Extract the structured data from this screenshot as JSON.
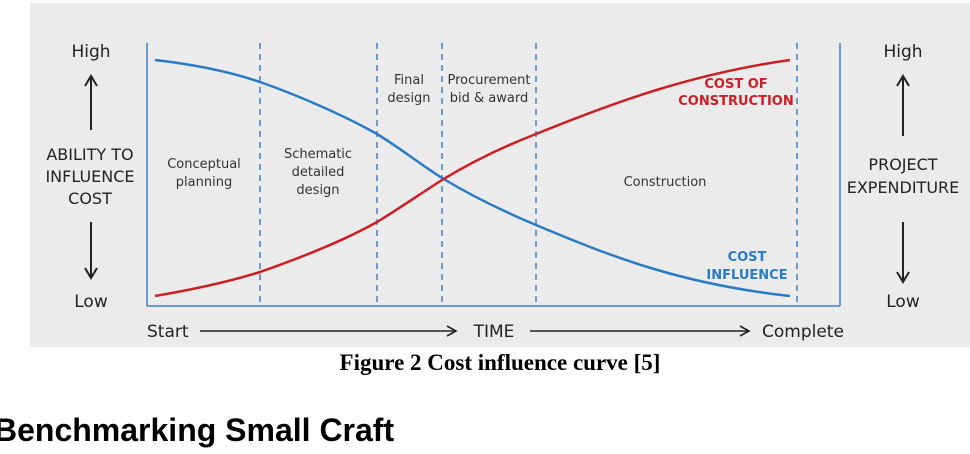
{
  "figure": {
    "left_axis": {
      "top": "High",
      "label_lines": [
        "ABILITY TO",
        "INFLUENCE",
        "COST"
      ],
      "bottom": "Low"
    },
    "right_axis": {
      "top": "High",
      "label_lines": [
        "PROJECT",
        "EXPENDITURE"
      ],
      "bottom": "Low"
    },
    "time_axis": {
      "start": "Start",
      "middle": "TIME",
      "end": "Complete"
    },
    "phases": [
      {
        "name": "conceptual-planning",
        "lines": [
          "Conceptual",
          "planning"
        ]
      },
      {
        "name": "schematic-detailed-design",
        "lines": [
          "Schematic",
          "detailed",
          "design"
        ]
      },
      {
        "name": "final-design",
        "lines": [
          "Final",
          "design"
        ]
      },
      {
        "name": "procurement-bid-award",
        "lines": [
          "Procurement",
          "bid & award"
        ]
      },
      {
        "name": "construction",
        "lines": [
          "Construction"
        ]
      }
    ],
    "curves": {
      "cost_of_construction": {
        "label_lines": [
          "COST OF",
          "CONSTRUCTION"
        ],
        "color": "#cc1f24"
      },
      "cost_influence": {
        "label_lines": [
          "COST",
          "INFLUENCE"
        ],
        "color": "#2a7bc6"
      }
    },
    "colors": {
      "panel": "#ebebeb",
      "divider": "#3f7fc6",
      "axis": "#3f7fc6",
      "text": "#222222"
    }
  },
  "caption": "Figure 2 Cost influence curve [5]",
  "section_heading": "Benchmarking Small Craft"
}
